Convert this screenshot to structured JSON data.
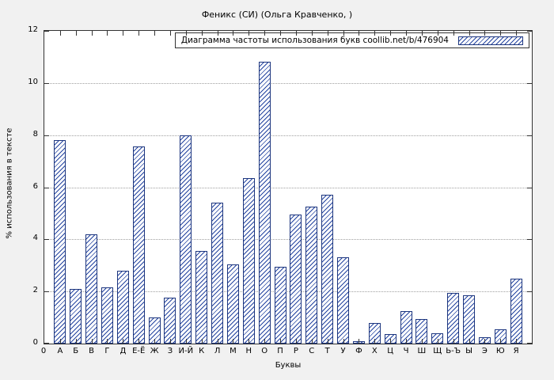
{
  "chart_data": {
    "type": "bar",
    "title": "Феникс (СИ) (Ольга Кравченко,  )",
    "legend_label": "Диаграмма частоты использования букв  coollib.net/b/476904",
    "xlabel": "Буквы",
    "ylabel": "% использования в тексте",
    "origin_label": "0",
    "ylim": [
      0,
      12
    ],
    "yticks": [
      0,
      2,
      4,
      6,
      8,
      10,
      12
    ],
    "grid": true,
    "legend_position": "top-right-inside",
    "bar_color": "#2444a0",
    "bar_border_color": "#1c357e",
    "categories": [
      "А",
      "Б",
      "В",
      "Г",
      "Д",
      "Е-Ё",
      "Ж",
      "З",
      "И-Й",
      "К",
      "Л",
      "М",
      "Н",
      "О",
      "П",
      "Р",
      "С",
      "Т",
      "У",
      "Ф",
      "Х",
      "Ц",
      "Ч",
      "Ш",
      "Щ",
      "Ь-Ъ",
      "Ы",
      "Э",
      "Ю",
      "Я"
    ],
    "values": [
      7.8,
      2.1,
      4.2,
      2.15,
      2.8,
      7.55,
      1.0,
      1.75,
      8.0,
      3.55,
      5.4,
      3.05,
      6.35,
      10.8,
      2.95,
      4.95,
      5.25,
      5.7,
      3.3,
      0.1,
      0.8,
      0.35,
      1.25,
      0.95,
      0.4,
      1.95,
      1.85,
      0.25,
      0.55,
      2.5
    ]
  }
}
